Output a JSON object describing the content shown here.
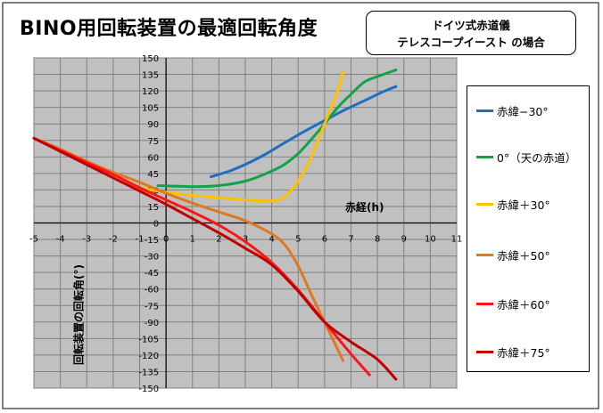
{
  "chart_data": {
    "type": "line",
    "title": "BINO用回転装置の最適回転角度",
    "note": [
      "ドイツ式赤道儀",
      "テレスコープイースト の場合"
    ],
    "xlabel": "赤経(h)",
    "ylabel": "回転装置の回転角(°)",
    "xlim": [
      -5,
      11
    ],
    "ylim": [
      -150,
      150
    ],
    "x_ticks": [
      -5,
      -4,
      -3,
      -2,
      -1,
      0,
      1,
      2,
      3,
      4,
      5,
      6,
      7,
      8,
      9,
      10,
      11
    ],
    "y_ticks": [
      150,
      135,
      120,
      105,
      90,
      75,
      60,
      45,
      30,
      15,
      0,
      -15,
      -30,
      -45,
      -60,
      -75,
      -90,
      -105,
      -120,
      -135,
      -150
    ],
    "x_tick_labels": [
      "-5",
      "-4",
      "-3",
      "-2",
      "-1",
      "0",
      "1",
      "2",
      "3",
      "4",
      "5",
      "6",
      "7",
      "8",
      "9",
      "10",
      "11"
    ],
    "y_tick_labels": [
      "150",
      "135",
      "120",
      "105",
      "90",
      "75",
      "60",
      "45",
      "30",
      "15",
      "0",
      "-15",
      "-30",
      "-45",
      "-60",
      "-75",
      "-90",
      "-105",
      "-120",
      "-135",
      "-150"
    ],
    "grid": true,
    "legend_position": "right",
    "background": "#c0c0c0",
    "series": [
      {
        "name": "赤緯−30°",
        "color": "#1f6fc0",
        "x": [
          1.7,
          2.5,
          3.5,
          4.5,
          5.3,
          6.0,
          6.7,
          7.5,
          8.2,
          8.7
        ],
        "y": [
          42,
          48,
          59,
          73,
          84,
          93,
          102,
          111,
          119,
          124
        ]
      },
      {
        "name": "0°（天の赤道）",
        "color": "#12a34a",
        "x": [
          -0.3,
          1.0,
          2.0,
          3.0,
          3.7,
          4.4,
          5.0,
          5.5,
          6.0,
          6.5,
          7.0,
          7.5,
          8.0,
          8.7
        ],
        "y": [
          34,
          33,
          34,
          38,
          44,
          52,
          63,
          76,
          90,
          105,
          117,
          128,
          133,
          139
        ]
      },
      {
        "name": "赤緯＋30°",
        "color": "#ffc000",
        "x": [
          -1.7,
          -1.0,
          0.0,
          1.0,
          2.0,
          3.0,
          4.0,
          4.5,
          5.0,
          5.5,
          6.0,
          6.5,
          6.7
        ],
        "y": [
          37,
          32,
          28,
          25,
          23,
          21,
          20,
          24,
          38,
          60,
          90,
          120,
          138
        ]
      },
      {
        "name": "赤緯＋50°",
        "color": "#e07820",
        "x": [
          -5.0,
          -4.0,
          -3.0,
          -2.0,
          -1.0,
          0.0,
          1.0,
          2.0,
          3.0,
          4.0,
          4.5,
          5.0,
          5.5,
          6.0,
          6.5,
          6.7
        ],
        "y": [
          77,
          67,
          56,
          46,
          37,
          27,
          18,
          10,
          2,
          -10,
          -20,
          -39,
          -65,
          -90,
          -115,
          -125
        ]
      },
      {
        "name": "赤緯＋60°",
        "color": "#ff1515",
        "x": [
          -5.0,
          -4.0,
          -3.0,
          -2.0,
          -1.0,
          0.0,
          1.0,
          2.0,
          3.0,
          4.0,
          5.0,
          6.0,
          7.0,
          7.7
        ],
        "y": [
          77,
          66,
          55,
          44,
          32,
          21,
          10,
          -2,
          -17,
          -36,
          -61,
          -90,
          -119,
          -138
        ]
      },
      {
        "name": "赤緯＋75°",
        "color": "#c00000",
        "x": [
          -5.0,
          -4.0,
          -3.0,
          -2.0,
          -1.0,
          0.0,
          1.0,
          2.0,
          3.0,
          4.0,
          5.0,
          6.0,
          7.0,
          8.0,
          8.7
        ],
        "y": [
          77,
          65,
          53,
          41,
          29,
          17,
          4,
          -9,
          -23,
          -38,
          -62,
          -90,
          -108,
          -124,
          -142
        ]
      }
    ]
  }
}
